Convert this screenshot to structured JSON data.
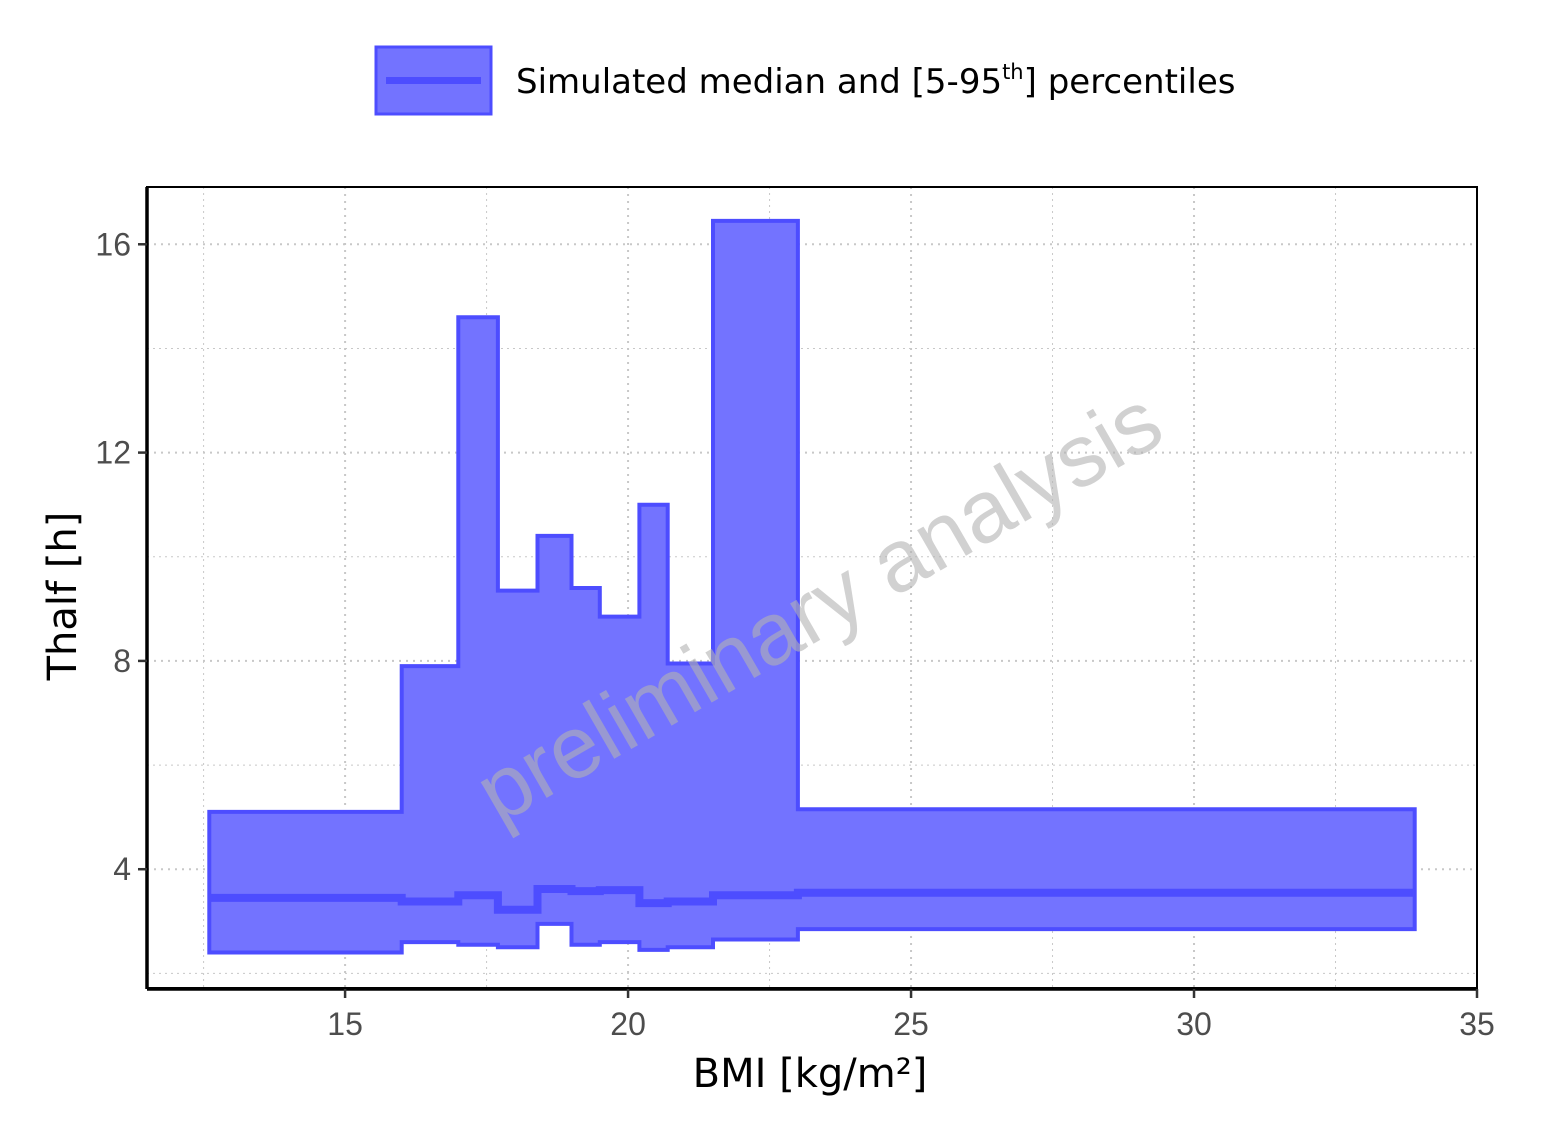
{
  "chart_data": {
    "type": "area",
    "title": "",
    "xlabel": "BMI [kg/m²]",
    "ylabel": "Thalf [h]",
    "xlim": [
      11.5,
      35
    ],
    "ylim": [
      1.7,
      17.1
    ],
    "x_ticks": [
      15,
      20,
      25,
      30,
      35
    ],
    "y_ticks": [
      4,
      8,
      12,
      16
    ],
    "x_tick_labels": [
      "15",
      "20",
      "25",
      "30",
      "35"
    ],
    "y_tick_labels": [
      "4",
      "8",
      "12",
      "16"
    ],
    "grid": true,
    "legend_position": "top",
    "legend": {
      "label": "Simulated median and [5-95",
      "sup": "th",
      "label_end": "] percentiles"
    },
    "watermark": "preliminary analysis",
    "colors": {
      "fill": "#7373ff",
      "line": "#4d4dff",
      "grid": "#c8c8c8"
    },
    "bins": [
      {
        "x0": 12.6,
        "x1": 16.0,
        "p5": 2.4,
        "median": 3.45,
        "p95": 5.1
      },
      {
        "x0": 16.0,
        "x1": 17.0,
        "p5": 2.6,
        "median": 3.38,
        "p95": 7.9
      },
      {
        "x0": 17.0,
        "x1": 17.7,
        "p5": 2.55,
        "median": 3.5,
        "p95": 14.6
      },
      {
        "x0": 17.7,
        "x1": 18.4,
        "p5": 2.5,
        "median": 3.22,
        "p95": 9.35
      },
      {
        "x0": 18.4,
        "x1": 19.0,
        "p5": 2.95,
        "median": 3.62,
        "p95": 10.4
      },
      {
        "x0": 19.0,
        "x1": 19.5,
        "p5": 2.55,
        "median": 3.58,
        "p95": 9.4
      },
      {
        "x0": 19.5,
        "x1": 20.2,
        "p5": 2.6,
        "median": 3.6,
        "p95": 8.85
      },
      {
        "x0": 20.2,
        "x1": 20.7,
        "p5": 2.45,
        "median": 3.35,
        "p95": 11.0
      },
      {
        "x0": 20.7,
        "x1": 21.5,
        "p5": 2.5,
        "median": 3.38,
        "p95": 7.95
      },
      {
        "x0": 21.5,
        "x1": 23.0,
        "p5": 2.65,
        "median": 3.5,
        "p95": 16.45
      },
      {
        "x0": 23.0,
        "x1": 33.9,
        "p5": 2.85,
        "median": 3.55,
        "p95": 5.15
      }
    ]
  }
}
